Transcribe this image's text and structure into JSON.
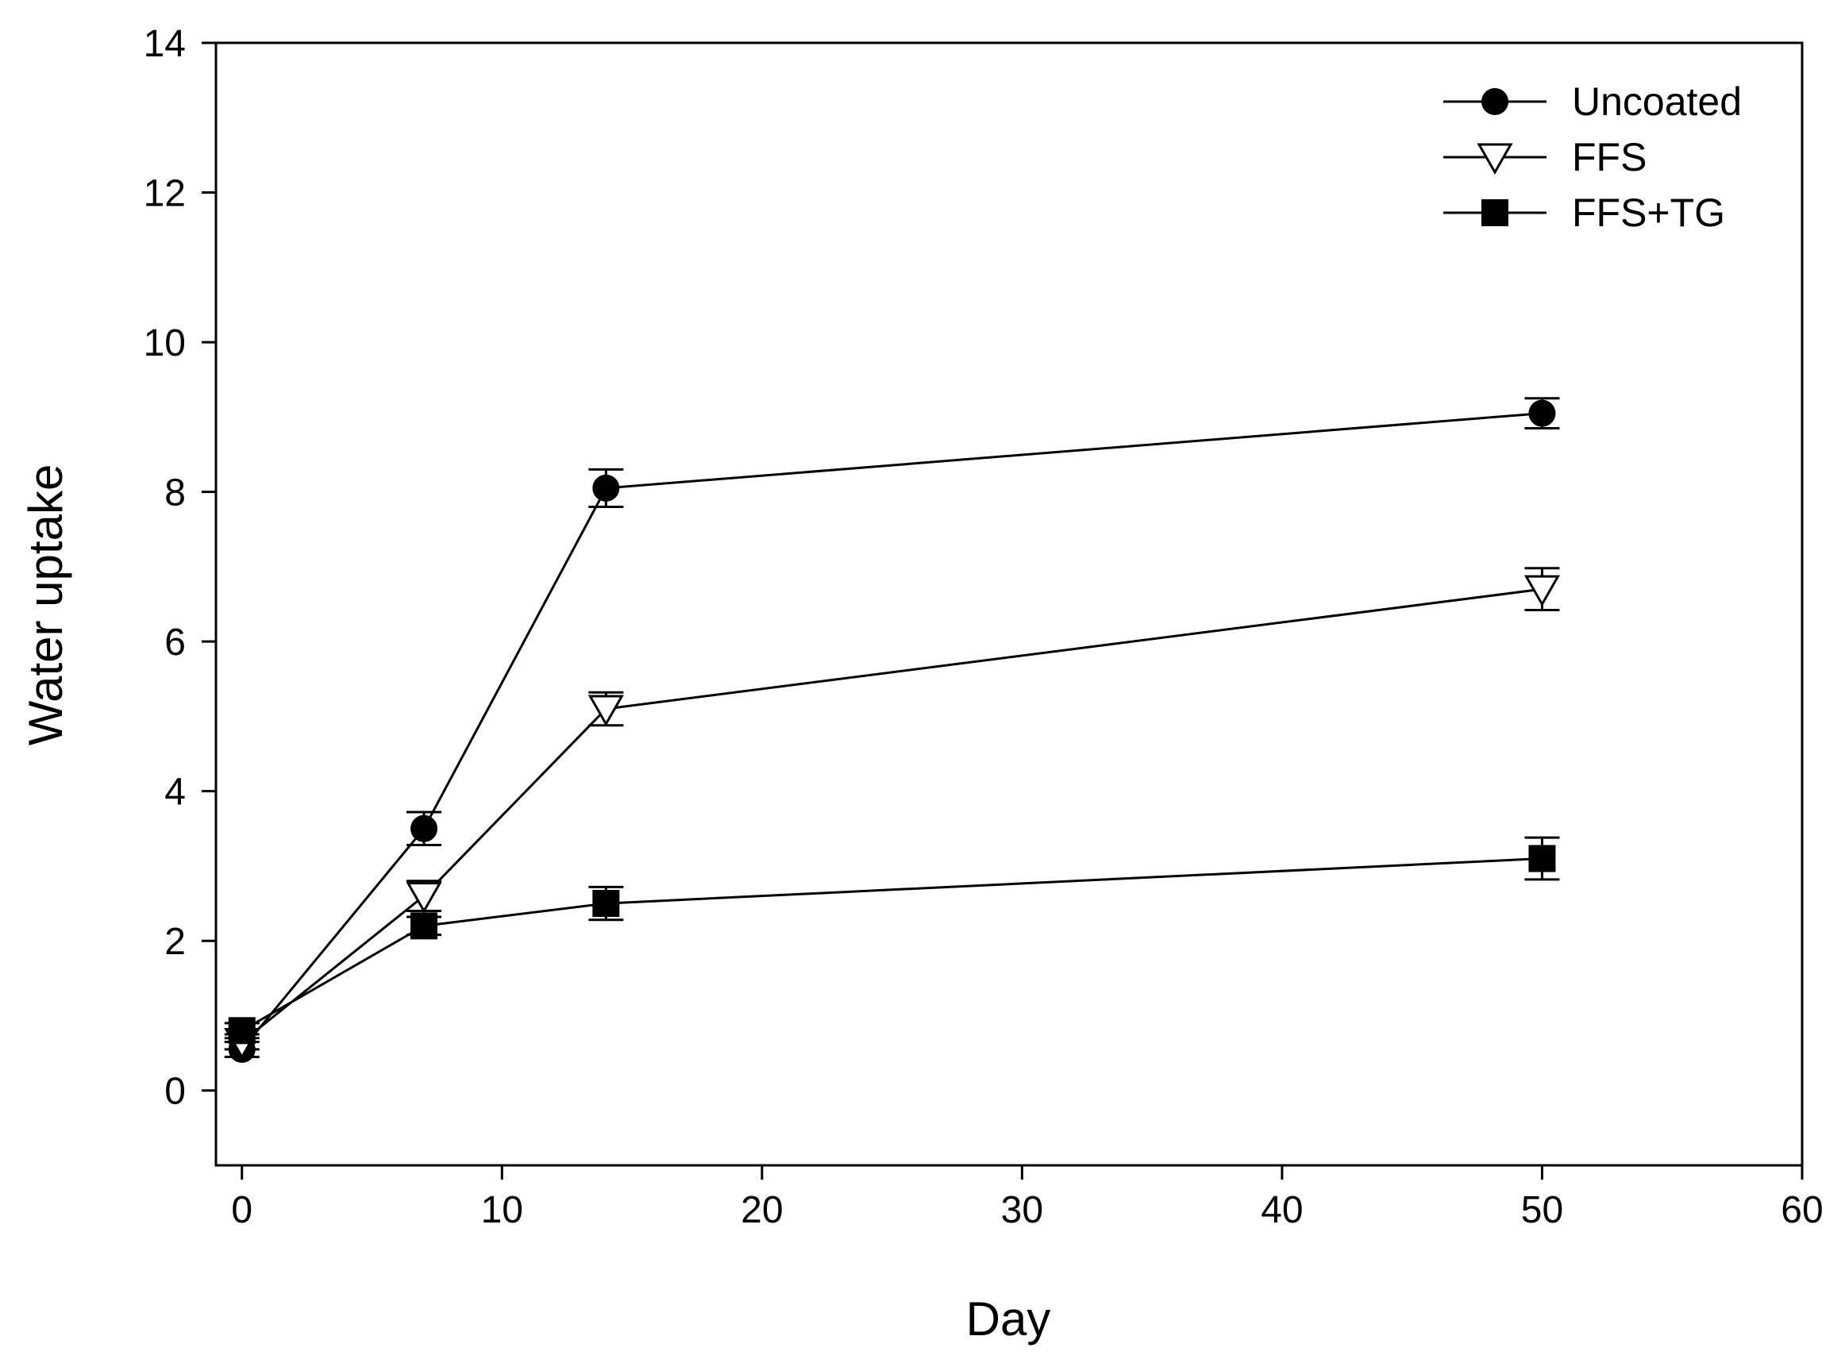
{
  "chart_data": {
    "type": "line",
    "title": "",
    "xlabel": "Day",
    "ylabel": "Water uptake",
    "xlim": [
      -1,
      60
    ],
    "ylim": [
      -1,
      14
    ],
    "x_ticks": [
      0,
      10,
      20,
      30,
      40,
      50,
      60
    ],
    "y_ticks": [
      0,
      2,
      4,
      6,
      8,
      10,
      12,
      14
    ],
    "x_tick_labels": [
      "0",
      "10",
      "20",
      "30",
      "40",
      "50",
      "60"
    ],
    "y_tick_labels": [
      "0",
      "2",
      "4",
      "6",
      "8",
      "10",
      "12",
      "14"
    ],
    "grid": false,
    "legend_position": "top-right",
    "series": [
      {
        "name": "Uncoated",
        "marker": "circle-filled",
        "x": [
          0,
          7,
          14,
          50
        ],
        "y": [
          0.55,
          3.5,
          8.05,
          9.05
        ],
        "error": [
          0.1,
          0.22,
          0.25,
          0.2
        ]
      },
      {
        "name": "FFS",
        "marker": "triangle-down-open",
        "x": [
          0,
          7,
          14,
          50
        ],
        "y": [
          0.65,
          2.6,
          5.1,
          6.7
        ],
        "error": [
          0.1,
          0.2,
          0.22,
          0.28
        ]
      },
      {
        "name": "FFS+TG",
        "marker": "square-filled",
        "x": [
          0,
          7,
          14,
          50
        ],
        "y": [
          0.8,
          2.2,
          2.5,
          3.1
        ],
        "error": [
          0.1,
          0.12,
          0.22,
          0.28
        ]
      }
    ]
  }
}
